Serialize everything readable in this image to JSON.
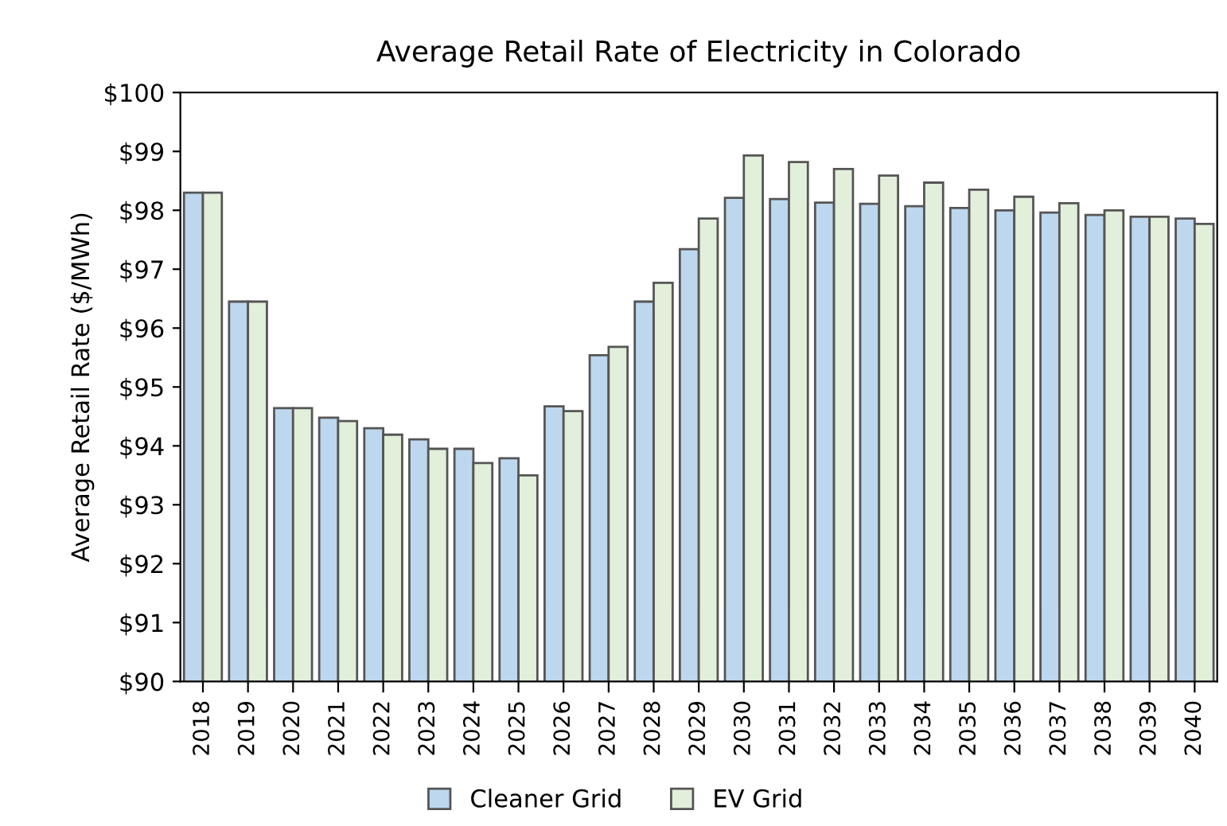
{
  "chart_data": {
    "type": "bar",
    "title": "Average Retail Rate of Electricity in Colorado",
    "ylabel": "Average Retail Rate ($/MWh)",
    "categories": [
      "2018",
      "2019",
      "2020",
      "2021",
      "2022",
      "2023",
      "2024",
      "2025",
      "2026",
      "2027",
      "2028",
      "2029",
      "2030",
      "2031",
      "2032",
      "2033",
      "2034",
      "2035",
      "2036",
      "2037",
      "2038",
      "2039",
      "2040"
    ],
    "series": [
      {
        "name": "Cleaner Grid",
        "color": "#bdd7ee",
        "values": [
          98.3,
          96.45,
          94.64,
          94.48,
          94.3,
          94.11,
          93.95,
          93.79,
          94.67,
          95.54,
          96.45,
          97.34,
          98.21,
          98.19,
          98.13,
          98.11,
          98.07,
          98.04,
          98.0,
          97.96,
          97.92,
          97.89,
          97.86
        ]
      },
      {
        "name": "EV Grid",
        "color": "#e2efda",
        "values": [
          98.3,
          96.45,
          94.64,
          94.42,
          94.19,
          93.95,
          93.71,
          93.5,
          94.59,
          95.68,
          96.77,
          97.86,
          98.93,
          98.82,
          98.7,
          98.59,
          98.47,
          98.35,
          98.23,
          98.12,
          98.0,
          97.89,
          97.77
        ]
      }
    ],
    "ylim": [
      90,
      100
    ],
    "yticks": [
      {
        "value": 90,
        "label": "$90"
      },
      {
        "value": 91,
        "label": "$91"
      },
      {
        "value": 92,
        "label": "$92"
      },
      {
        "value": 93,
        "label": "$93"
      },
      {
        "value": 94,
        "label": "$94"
      },
      {
        "value": 95,
        "label": "$95"
      },
      {
        "value": 96,
        "label": "$96"
      },
      {
        "value": 97,
        "label": "$97"
      },
      {
        "value": 98,
        "label": "$98"
      },
      {
        "value": 99,
        "label": "$99"
      },
      {
        "value": 100,
        "label": "$100"
      }
    ],
    "grid": false,
    "legend": "bottom"
  }
}
